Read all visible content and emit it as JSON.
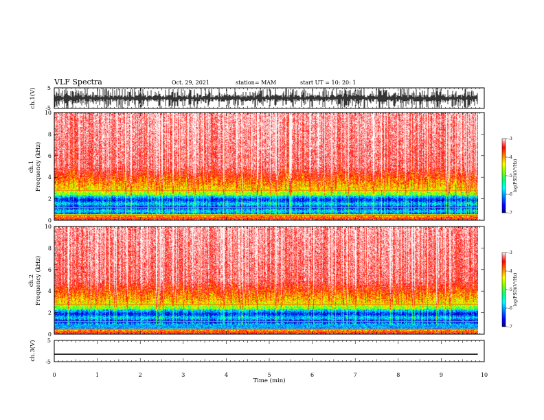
{
  "header": {
    "title": "VLF Spectra",
    "date": "Oct. 29, 2021",
    "station": "station= MAM",
    "start_ut": "start  UT  =   10: 20: 1"
  },
  "chart_data": {
    "type": "heatmap",
    "xlabel": "Time  (min)",
    "xlim": [
      0,
      10
    ],
    "xticks": [
      "0",
      "1",
      "2",
      "3",
      "4",
      "5",
      "6",
      "7",
      "8",
      "9",
      "10"
    ],
    "panels": [
      {
        "id": "ch1_waveform",
        "ylabel": "ch.1(V)",
        "ylim": [
          -5,
          5
        ],
        "yticks": [
          "5",
          "-5"
        ]
      },
      {
        "id": "ch1_spectrogram",
        "ylabel_top": "ch.1",
        "ylabel": "Frequency  (kHz)",
        "ylim": [
          0,
          10
        ],
        "yticks": [
          "10",
          "8",
          "6",
          "4",
          "2",
          "0"
        ],
        "colorbar_label": "log(PSD)(V²/Hz)",
        "colorbar_ticks": [
          "-3",
          "-4",
          "-5",
          "-6",
          "-7"
        ],
        "colorbar_range": [
          -7,
          -3
        ]
      },
      {
        "id": "ch2_spectrogram",
        "ylabel_top": "ch.2",
        "ylabel": "Frequency  (kHz)",
        "ylim": [
          0,
          10
        ],
        "yticks": [
          "10",
          "8",
          "6",
          "4",
          "2",
          "0"
        ],
        "colorbar_label": "log(PSD)(V²/Hz)",
        "colorbar_ticks": [
          "-3",
          "-4",
          "-5",
          "-6",
          "-7"
        ],
        "colorbar_range": [
          -7,
          -3
        ]
      },
      {
        "id": "ch3_waveform",
        "ylabel": "ch.3(V)",
        "ylim": [
          -5,
          5
        ],
        "yticks": [
          "5",
          "-5"
        ],
        "level": -1.5
      }
    ],
    "data_end_min": 9.85,
    "colormap": [
      "#00007f",
      "#0000ff",
      "#0080ff",
      "#00ffff",
      "#00ff80",
      "#80ff00",
      "#ffff00",
      "#ff8000",
      "#ff0000",
      "#ff8080",
      "#ffffff"
    ]
  }
}
